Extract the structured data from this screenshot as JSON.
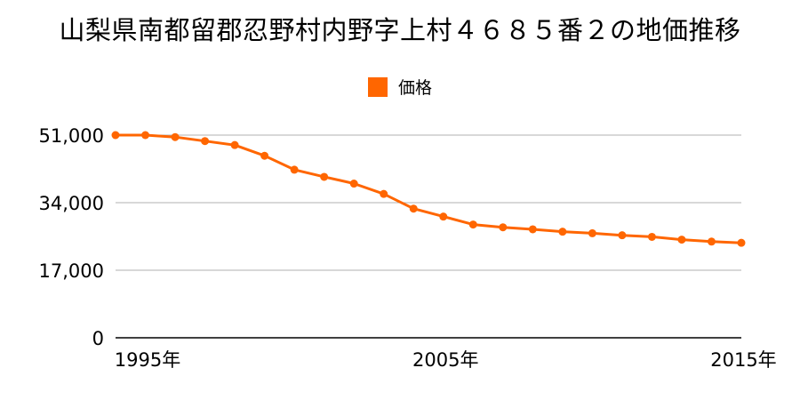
{
  "title": "山梨県南都留郡忍野村内野字上村４６８５番２の地価推移",
  "legend": {
    "label": "価格"
  },
  "colors": {
    "series": "#ff6600",
    "grid": "#b0b0b0",
    "axis": "#000000"
  },
  "chart_data": {
    "type": "line",
    "title": "山梨県南都留郡忍野村内野字上村４６８５番２の地価推移",
    "xlabel": "",
    "ylabel": "",
    "x": [
      1995,
      1996,
      1997,
      1998,
      1999,
      2000,
      2001,
      2002,
      2003,
      2004,
      2005,
      2006,
      2007,
      2008,
      2009,
      2010,
      2011,
      2012,
      2013,
      2014,
      2015,
      2016
    ],
    "series": [
      {
        "name": "価格",
        "values": [
          51000,
          51000,
          50500,
          49500,
          48500,
          45800,
          42300,
          40500,
          38800,
          36200,
          32500,
          30500,
          28500,
          27800,
          27300,
          26700,
          26300,
          25800,
          25400,
          24700,
          24200,
          23900
        ]
      }
    ],
    "ylim": [
      0,
      51000
    ],
    "yticks": [
      0,
      17000,
      34000,
      51000
    ],
    "ytick_labels": [
      "0",
      "17,000",
      "34,000",
      "51,000"
    ],
    "xticks": [
      1995,
      2005,
      2015
    ],
    "xtick_labels": [
      "1995年",
      "2005年",
      "2015年"
    ],
    "grid": true,
    "legend_position": "top-center"
  }
}
